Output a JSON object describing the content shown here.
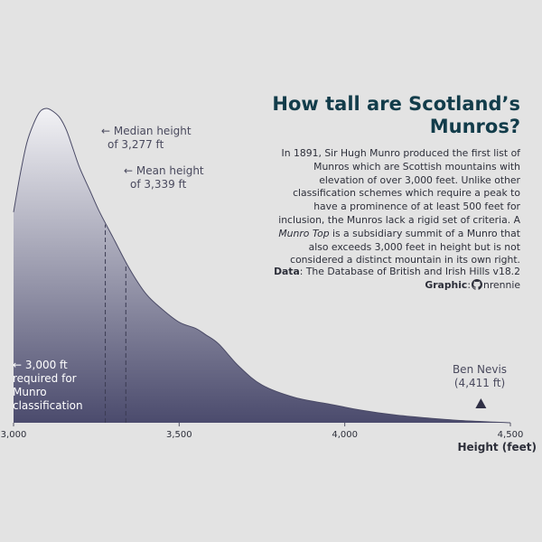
{
  "title": "How tall are Scotland’s Munros?",
  "subtitle": {
    "part1": "In 1891, Sir Hugh Munro produced the first list of Munros which are Scottish mountains with elevation of over 3,000 feet. Unlike other classification schemes which require a peak to have a prominence of at least 500 feet for inclusion, the Munros lack a rigid set of criteria. A ",
    "emphasis": "Munro Top",
    "part2": " is a subsidiary summit of a Munro that also exceeds 3,000 feet in height but is not considered a distinct mountain in its own right."
  },
  "caption": {
    "data_label": "Data",
    "data_source": ": The Database of British and Irish Hills v18.2",
    "graphic_label": "Graphic",
    "graphic_colon": ":",
    "graphic_icon": "github-icon",
    "graphic_author": "nrennie"
  },
  "annotations": {
    "median_line1": "← Median height",
    "median_line2": "of 3,277 ft",
    "mean_line1": "← Mean height",
    "mean_line2": "of 3,339 ft",
    "threshold_line1": "← 3,000 ft",
    "threshold_line2": "required for",
    "threshold_line3": "Munro",
    "threshold_line4": "classification",
    "bennevis_line1": "Ben Nevis",
    "bennevis_line2": "(4,411 ft)"
  },
  "colors": {
    "background": "#e3e3e3",
    "fill_top": "#f2f2f5",
    "fill_bottom": "#4b4b6d",
    "outline": "#4a4a66",
    "title": "#123c4a",
    "text": "#2d2f3a",
    "marker": "#2f2f45"
  },
  "chart_data": {
    "type": "area",
    "subtype": "density",
    "xlabel": "Height (feet)",
    "ylabel": "",
    "xlim": [
      3000,
      4500
    ],
    "x_ticks": [
      3000,
      3500,
      4000,
      4500
    ],
    "x_tick_labels": [
      "3,000",
      "3,500",
      "4,000",
      "4,500"
    ],
    "ylim": [
      0,
      1
    ],
    "grid": false,
    "density_points": [
      {
        "x": 3000,
        "y": 0.67
      },
      {
        "x": 3020,
        "y": 0.79
      },
      {
        "x": 3040,
        "y": 0.89
      },
      {
        "x": 3060,
        "y": 0.95
      },
      {
        "x": 3080,
        "y": 0.99
      },
      {
        "x": 3100,
        "y": 1.0
      },
      {
        "x": 3120,
        "y": 0.99
      },
      {
        "x": 3140,
        "y": 0.97
      },
      {
        "x": 3160,
        "y": 0.93
      },
      {
        "x": 3180,
        "y": 0.87
      },
      {
        "x": 3200,
        "y": 0.81
      },
      {
        "x": 3230,
        "y": 0.74
      },
      {
        "x": 3260,
        "y": 0.67
      },
      {
        "x": 3300,
        "y": 0.59
      },
      {
        "x": 3350,
        "y": 0.49
      },
      {
        "x": 3400,
        "y": 0.41
      },
      {
        "x": 3450,
        "y": 0.36
      },
      {
        "x": 3500,
        "y": 0.32
      },
      {
        "x": 3550,
        "y": 0.3
      },
      {
        "x": 3580,
        "y": 0.28
      },
      {
        "x": 3620,
        "y": 0.25
      },
      {
        "x": 3680,
        "y": 0.18
      },
      {
        "x": 3750,
        "y": 0.12
      },
      {
        "x": 3850,
        "y": 0.08
      },
      {
        "x": 3950,
        "y": 0.06
      },
      {
        "x": 4050,
        "y": 0.04
      },
      {
        "x": 4150,
        "y": 0.025
      },
      {
        "x": 4250,
        "y": 0.015
      },
      {
        "x": 4350,
        "y": 0.007
      },
      {
        "x": 4450,
        "y": 0.002
      },
      {
        "x": 4500,
        "y": 0.0
      }
    ],
    "median": 3277,
    "mean": 3339,
    "threshold": 3000,
    "max_point": {
      "name": "Ben Nevis",
      "x": 4411
    }
  }
}
